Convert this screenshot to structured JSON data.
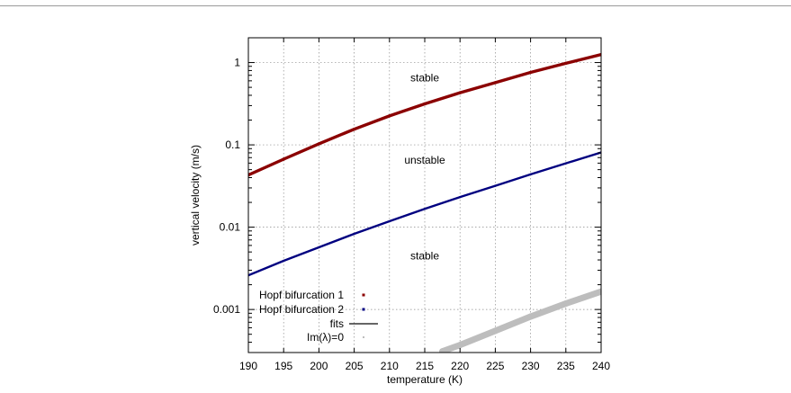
{
  "chart_data": {
    "type": "line",
    "xlabel": "temperature (K)",
    "ylabel": "vertical velocity (m/s)",
    "xlim": [
      190,
      240
    ],
    "ylim": [
      0.0003,
      2
    ],
    "yscale": "log",
    "grid": true,
    "legend_position": "bottom-left",
    "x_ticks": [
      "190",
      "195",
      "200",
      "205",
      "210",
      "215",
      "220",
      "225",
      "230",
      "235",
      "240"
    ],
    "y_ticks": [
      {
        "value": 0.001,
        "label": "0.001"
      },
      {
        "value": 0.01,
        "label": "0.01"
      },
      {
        "value": 0.1,
        "label": "0.1"
      },
      {
        "value": 1,
        "label": "1"
      }
    ],
    "series": [
      {
        "name": "Hopf bifurcation 1",
        "color": "#8b0000",
        "style": "points",
        "x": [
          190,
          195,
          200,
          205,
          210,
          215,
          220,
          225,
          230,
          235,
          240
        ],
        "y": [
          0.043,
          0.067,
          0.103,
          0.155,
          0.225,
          0.315,
          0.43,
          0.57,
          0.76,
          0.98,
          1.25
        ]
      },
      {
        "name": "Hopf bifurcation 2",
        "color": "#000080",
        "style": "points",
        "x": [
          190,
          195,
          200,
          205,
          210,
          215,
          220,
          225,
          230,
          235,
          240
        ],
        "y": [
          0.0026,
          0.0039,
          0.0057,
          0.0083,
          0.0118,
          0.0167,
          0.0232,
          0.0318,
          0.0438,
          0.0596,
          0.081
        ]
      },
      {
        "name": "fits",
        "color": "#333333",
        "style": "line"
      },
      {
        "name": "Im(λ)=0",
        "color": "#bdbdbd",
        "style": "points",
        "x": [
          217.5,
          220,
          225,
          230,
          235,
          240
        ],
        "y": [
          0.00031,
          0.00037,
          0.00055,
          0.00082,
          0.00118,
          0.00165
        ]
      }
    ],
    "annotations": [
      {
        "text": "stable",
        "x": 215,
        "y": 0.65
      },
      {
        "text": "unstable",
        "x": 215,
        "y": 0.065
      },
      {
        "text": "stable",
        "x": 215,
        "y": 0.0045
      }
    ]
  }
}
